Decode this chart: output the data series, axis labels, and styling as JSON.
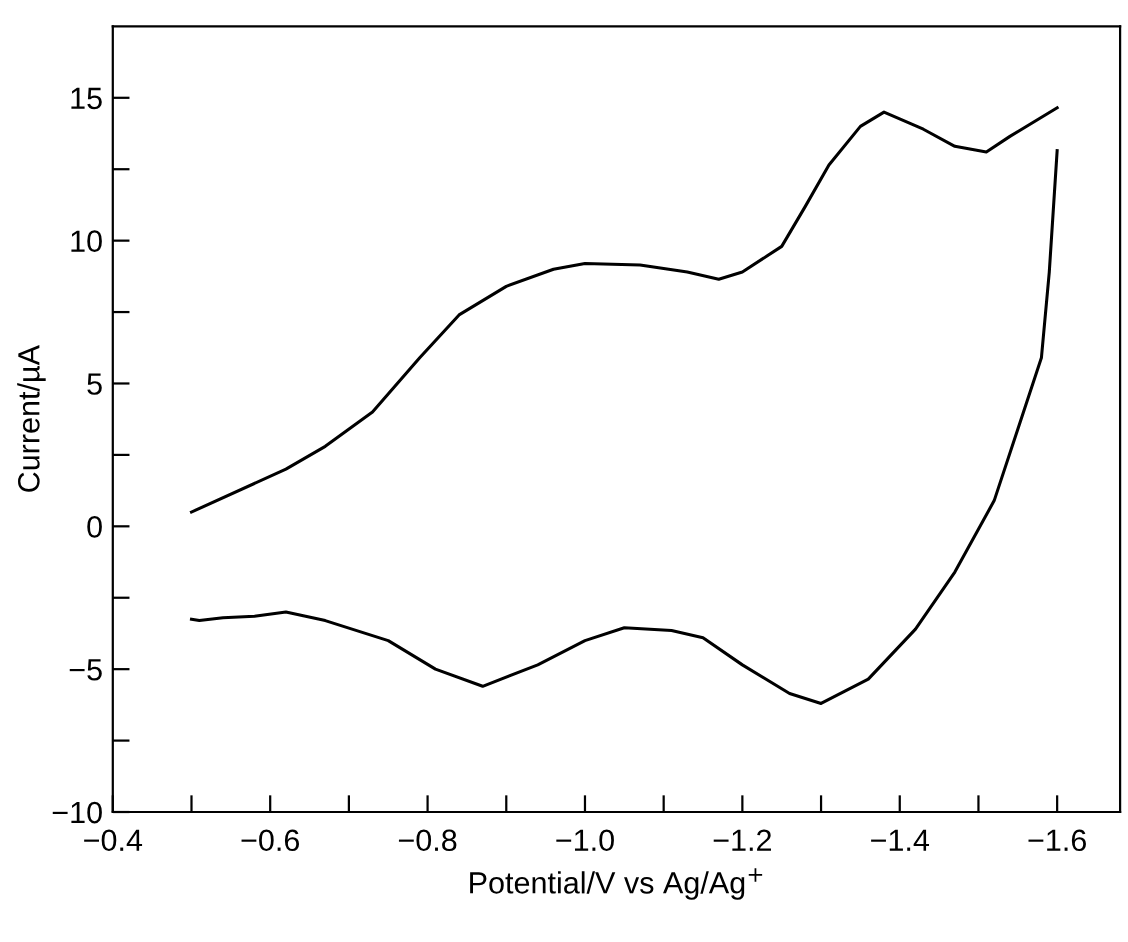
{
  "chart_data": {
    "type": "line",
    "xlabel": "Potential/V vs Ag/Ag$^{+}$",
    "ylabel": "Current/µA",
    "xlim": [
      -0.4,
      -1.68
    ],
    "ylim": [
      -10,
      17.5
    ],
    "xticks": [
      -0.4,
      {
        "value": -0.5,
        "label": null
      },
      -0.6,
      {
        "value": -0.7,
        "label": null
      },
      -0.8,
      {
        "value": -0.9,
        "label": null
      },
      {
        "value": -1.0,
        "label": "−1.0"
      },
      {
        "value": -1.1,
        "label": null
      },
      -1.2,
      {
        "value": -1.3,
        "label": null
      },
      -1.4,
      {
        "value": -1.5,
        "label": null
      },
      -1.6
    ],
    "yticks": [
      -10,
      {
        "value": -7.5,
        "label": null
      },
      -5,
      {
        "value": -2.5,
        "label": null
      },
      0,
      {
        "value": 2.5,
        "label": null
      },
      5,
      {
        "value": 7.5,
        "label": null
      },
      10,
      {
        "value": 12.5,
        "label": null
      },
      15
    ],
    "grid": false,
    "legend": false,
    "marker": "none",
    "line_style": "solid",
    "series": [
      {
        "color": "#000000",
        "x": [
          -0.5,
          -0.62,
          -0.67,
          -0.73,
          -0.79,
          -0.84,
          -0.9,
          -0.96,
          -1.0,
          -1.07,
          -1.13,
          -1.17,
          -1.2,
          -1.25,
          -1.28,
          -1.31,
          -1.35,
          -1.38,
          -1.43,
          -1.47,
          -1.51,
          -1.54,
          -1.6
        ],
        "values": [
          0.5,
          2.0,
          2.8,
          4.0,
          5.9,
          7.4,
          8.4,
          9.0,
          9.2,
          9.15,
          8.9,
          8.65,
          8.9,
          9.8,
          11.2,
          12.65,
          14.0,
          14.5,
          13.9,
          13.3,
          13.1,
          13.65,
          14.65
        ]
      },
      {
        "color": "#000000",
        "x": [
          -1.6,
          -1.59,
          -1.58,
          -1.55,
          -1.52,
          -1.47,
          -1.42,
          -1.36,
          -1.3,
          -1.26,
          -1.2,
          -1.15,
          -1.11,
          -1.05,
          -1.0,
          -0.94,
          -0.87,
          -0.81,
          -0.75,
          -0.67,
          -0.62,
          -0.58,
          -0.54,
          -0.51,
          -0.5
        ],
        "values": [
          13.15,
          8.9,
          5.9,
          3.4,
          0.9,
          -1.6,
          -3.6,
          -5.35,
          -6.2,
          -5.85,
          -4.85,
          -3.9,
          -3.65,
          -3.55,
          -4.0,
          -4.85,
          -5.6,
          -5.0,
          -4.0,
          -3.3,
          -3.0,
          -3.15,
          -3.2,
          -3.3,
          -3.25
        ]
      }
    ]
  }
}
